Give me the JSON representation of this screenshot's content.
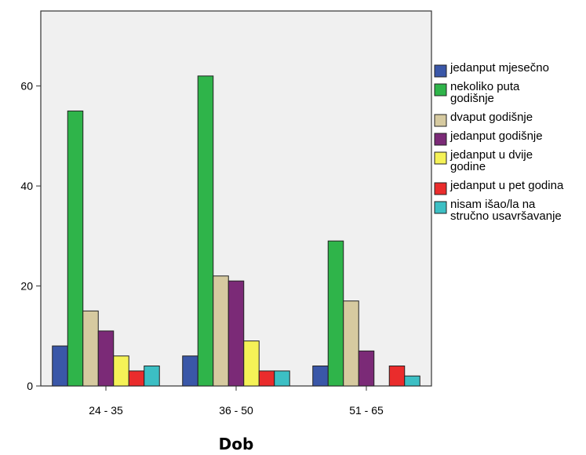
{
  "chart_data": {
    "type": "bar",
    "categories": [
      "24 - 35",
      "36 - 50",
      "51 - 65"
    ],
    "xlabel": "Dob",
    "ylabel": "",
    "ylim": [
      0,
      75
    ],
    "yticks": [
      0,
      20,
      40,
      60
    ],
    "legend_position": "right",
    "grid": false,
    "series": [
      {
        "name": "jedanput mjesečno",
        "color": "#3a57a8",
        "values": [
          8,
          6,
          4
        ]
      },
      {
        "name": "nekoliko puta godišnje",
        "color": "#2fb44a",
        "values": [
          55,
          62,
          29
        ]
      },
      {
        "name": "dvaput godišnje",
        "color": "#d6caa0",
        "values": [
          15,
          22,
          17
        ]
      },
      {
        "name": "jedanput godišnje",
        "color": "#7b2a77",
        "values": [
          11,
          21,
          7
        ]
      },
      {
        "name": "jedanput u dvije godine",
        "color": "#f5f257",
        "values": [
          6,
          9,
          0
        ]
      },
      {
        "name": "jedanput u pet godina",
        "color": "#ea2c2c",
        "values": [
          3,
          3,
          4
        ]
      },
      {
        "name": "nisam išao/la na stručno usavršavanje",
        "color": "#3cbfc4",
        "values": [
          4,
          3,
          2
        ]
      }
    ]
  }
}
